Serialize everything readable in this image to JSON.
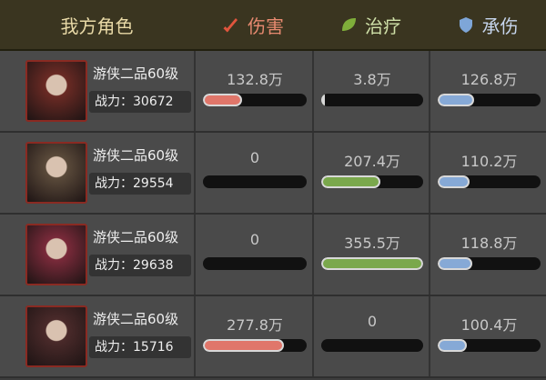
{
  "header": {
    "role": "我方角色",
    "damage": "伤害",
    "healing": "治疗",
    "taken": "承伤"
  },
  "rows": [
    {
      "title": "游侠二品60级",
      "power": "战力：30672",
      "damage": {
        "value": 132.8,
        "label": "132.8万"
      },
      "healing": {
        "value": 3.8,
        "label": "3.8万"
      },
      "taken": {
        "value": 126.8,
        "label": "126.8万"
      }
    },
    {
      "title": "游侠二品60级",
      "power": "战力：29554",
      "damage": 0,
      "healing": {
        "value": 207.4,
        "label": "207.4万"
      },
      "taken": {
        "value": 110.2,
        "label": "110.2万"
      }
    },
    {
      "title": "游侠二品60级",
      "power": "战力：29638",
      "damage": 0,
      "healing": {
        "value": 355.5,
        "label": "355.5万"
      },
      "taken": {
        "value": 118.8,
        "label": "118.8万"
      }
    },
    {
      "title": "游侠二品60级",
      "power": "战力：15716",
      "damage": {
        "value": 277.8,
        "label": "277.8万"
      },
      "healing": 0,
      "taken": {
        "value": 100.4,
        "label": "100.4万"
      }
    }
  ]
}
